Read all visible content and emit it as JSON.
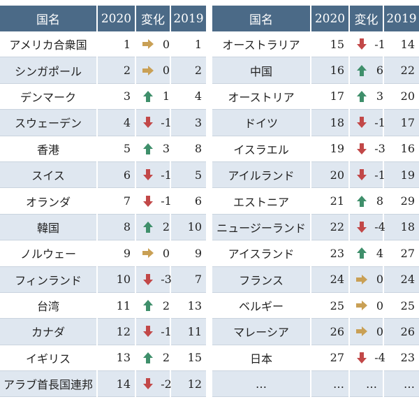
{
  "headers": {
    "country": "国名",
    "y2020": "2020",
    "change": "変化",
    "y2019": "2019"
  },
  "colors": {
    "header_bg": "#4b6a87",
    "row_alt": "#dfe7f0",
    "up": "#3f8f6b",
    "down": "#c24848",
    "same": "#c9a055"
  },
  "left": [
    {
      "country": "アメリカ合衆国",
      "r2020": "1",
      "dir": "same",
      "change": "0",
      "r2019": "1"
    },
    {
      "country": "シンガポール",
      "r2020": "2",
      "dir": "same",
      "change": "0",
      "r2019": "2"
    },
    {
      "country": "デンマーク",
      "r2020": "3",
      "dir": "up",
      "change": "1",
      "r2019": "4"
    },
    {
      "country": "スウェーデン",
      "r2020": "4",
      "dir": "down",
      "change": "-1",
      "r2019": "3"
    },
    {
      "country": "香港",
      "r2020": "5",
      "dir": "up",
      "change": "3",
      "r2019": "8"
    },
    {
      "country": "スイス",
      "r2020": "6",
      "dir": "down",
      "change": "-1",
      "r2019": "5"
    },
    {
      "country": "オランダ",
      "r2020": "7",
      "dir": "down",
      "change": "-1",
      "r2019": "6"
    },
    {
      "country": "韓国",
      "r2020": "8",
      "dir": "up",
      "change": "2",
      "r2019": "10"
    },
    {
      "country": "ノルウェー",
      "r2020": "9",
      "dir": "same",
      "change": "0",
      "r2019": "9"
    },
    {
      "country": "フィンランド",
      "r2020": "10",
      "dir": "down",
      "change": "-3",
      "r2019": "7"
    },
    {
      "country": "台湾",
      "r2020": "11",
      "dir": "up",
      "change": "2",
      "r2019": "13"
    },
    {
      "country": "カナダ",
      "r2020": "12",
      "dir": "down",
      "change": "-1",
      "r2019": "11"
    },
    {
      "country": "イギリス",
      "r2020": "13",
      "dir": "up",
      "change": "2",
      "r2019": "15"
    },
    {
      "country": "アラブ首長国連邦",
      "r2020": "14",
      "dir": "down",
      "change": "-2",
      "r2019": "12"
    }
  ],
  "right": [
    {
      "country": "オーストラリア",
      "r2020": "15",
      "dir": "down",
      "change": "-1",
      "r2019": "14"
    },
    {
      "country": "中国",
      "r2020": "16",
      "dir": "up",
      "change": "6",
      "r2019": "22"
    },
    {
      "country": "オーストリア",
      "r2020": "17",
      "dir": "up",
      "change": "3",
      "r2019": "20"
    },
    {
      "country": "ドイツ",
      "r2020": "18",
      "dir": "down",
      "change": "-1",
      "r2019": "17"
    },
    {
      "country": "イスラエル",
      "r2020": "19",
      "dir": "down",
      "change": "-3",
      "r2019": "16"
    },
    {
      "country": "アイルランド",
      "r2020": "20",
      "dir": "down",
      "change": "-1",
      "r2019": "19"
    },
    {
      "country": "エストニア",
      "r2020": "21",
      "dir": "up",
      "change": "8",
      "r2019": "29"
    },
    {
      "country": "ニュージーランド",
      "r2020": "22",
      "dir": "down",
      "change": "-4",
      "r2019": "18"
    },
    {
      "country": "アイスランド",
      "r2020": "23",
      "dir": "up",
      "change": "4",
      "r2019": "27"
    },
    {
      "country": "フランス",
      "r2020": "24",
      "dir": "same",
      "change": "0",
      "r2019": "24"
    },
    {
      "country": "ベルギー",
      "r2020": "25",
      "dir": "same",
      "change": "0",
      "r2019": "25"
    },
    {
      "country": "マレーシア",
      "r2020": "26",
      "dir": "same",
      "change": "0",
      "r2019": "26"
    },
    {
      "country": "日本",
      "r2020": "27",
      "dir": "down",
      "change": "-4",
      "r2019": "23"
    }
  ],
  "ellipsis": {
    "country": "…",
    "r2020": "…",
    "change": "…",
    "r2019": "…"
  }
}
